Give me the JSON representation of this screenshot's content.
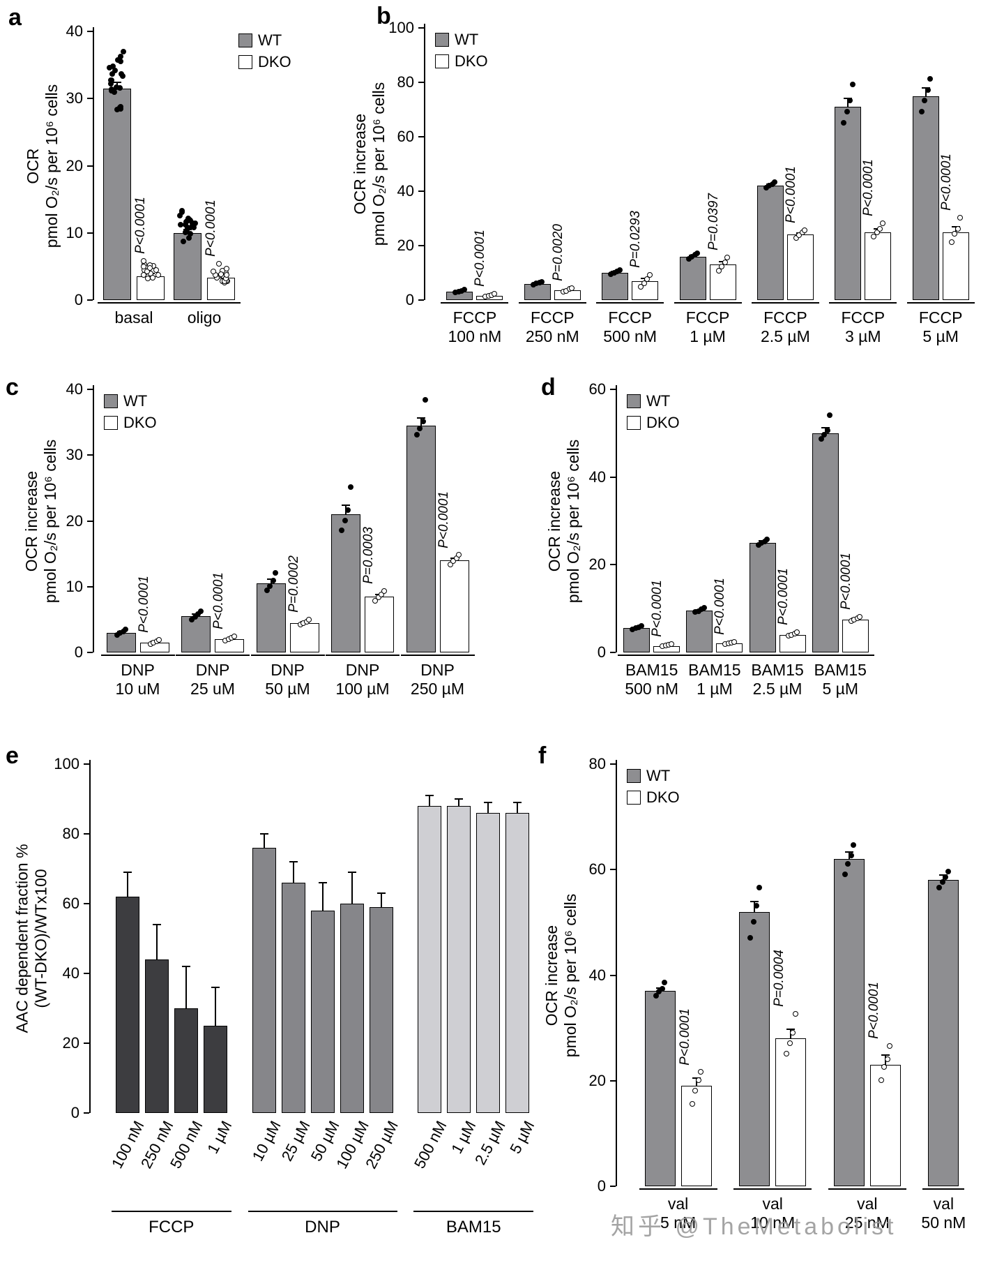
{
  "watermark": "知乎 @TheMetabolist",
  "legend": {
    "wt": "WT",
    "dko": "DKO"
  },
  "colors": {
    "wt_fill": "#8e8e91",
    "dko_fill": "#ffffff",
    "bar_border": "#000000"
  },
  "chart_data": [
    {
      "letter": "a",
      "type": "bar",
      "mode": "pair",
      "ylabel": [
        "OCR",
        "pmol O₂/s  per 10⁶ cells"
      ],
      "ymax": 40,
      "yticks": [
        0,
        10,
        20,
        30,
        40
      ],
      "groups": [
        {
          "lines": [
            "basal"
          ],
          "p": "P<0.0001",
          "wt": {
            "mean": 31.5,
            "err": 0.9,
            "n": 22,
            "range": [
              27,
              38
            ]
          },
          "dko": {
            "mean": 3.5,
            "err": 0.5,
            "n": 15,
            "range": [
              2,
              6.5
            ]
          }
        },
        {
          "lines": [
            "oligo"
          ],
          "p": "P<0.0001",
          "wt": {
            "mean": 10,
            "err": 0.5,
            "n": 22,
            "range": [
              8,
              14
            ]
          },
          "dko": {
            "mean": 3.3,
            "err": 0.5,
            "n": 15,
            "range": [
              2,
              5.5
            ]
          }
        }
      ]
    },
    {
      "letter": "b",
      "type": "bar",
      "mode": "pair",
      "ylabel": [
        "OCR increase",
        "pmol O₂/s  per 10⁶ cells"
      ],
      "ymax": 100,
      "yticks": [
        0,
        20,
        40,
        60,
        80,
        100
      ],
      "groups": [
        {
          "lines": [
            "FCCP",
            "100 nM"
          ],
          "p": "P<0.0001",
          "wt": {
            "mean": 3,
            "err": 0.3,
            "points": [
              2.5,
              2.8,
              3.2,
              3.5
            ]
          },
          "dko": {
            "mean": 1.5,
            "err": 0.3,
            "points": [
              1,
              1.3,
              1.6,
              2
            ]
          }
        },
        {
          "lines": [
            "FCCP",
            "250 nM"
          ],
          "p": "P=0.0020",
          "wt": {
            "mean": 6,
            "err": 0.3,
            "points": [
              5.5,
              5.8,
              6.2,
              6.5
            ]
          },
          "dko": {
            "mean": 3.5,
            "err": 0.4,
            "points": [
              2.8,
              3.2,
              3.8,
              4.2
            ]
          }
        },
        {
          "lines": [
            "FCCP",
            "500 nM"
          ],
          "p": "P=0.0293",
          "wt": {
            "mean": 10,
            "err": 0.4,
            "points": [
              9.2,
              9.8,
              10.3,
              10.8
            ]
          },
          "dko": {
            "mean": 7,
            "err": 1.0,
            "points": [
              4.5,
              6,
              7.5,
              9
            ]
          }
        },
        {
          "lines": [
            "FCCP",
            "1 µM"
          ],
          "p": "P=0.0397",
          "wt": {
            "mean": 16,
            "err": 0.5,
            "points": [
              15,
              15.7,
              16.4,
              17
            ]
          },
          "dko": {
            "mean": 13,
            "err": 1.2,
            "points": [
              10.5,
              12,
              13.5,
              15.5
            ]
          }
        },
        {
          "lines": [
            "FCCP",
            "2.5 µM"
          ],
          "p": "P<0.0001",
          "wt": {
            "mean": 42,
            "err": 0.5,
            "points": [
              41,
              41.7,
              42.3,
              43
            ]
          },
          "dko": {
            "mean": 24,
            "err": 0.7,
            "points": [
              22.5,
              23.5,
              24.5,
              25.5
            ]
          }
        },
        {
          "lines": [
            "FCCP",
            "3 µM"
          ],
          "p": "P<0.0001",
          "wt": {
            "mean": 71,
            "err": 3,
            "points": [
              65,
              69,
              73,
              79
            ]
          },
          "dko": {
            "mean": 25,
            "err": 1.2,
            "points": [
              23,
              24.5,
              26,
              28
            ]
          }
        },
        {
          "lines": [
            "FCCP",
            "5 µM"
          ],
          "p": "P<0.0001",
          "wt": {
            "mean": 75,
            "err": 3,
            "points": [
              69,
              73,
              77,
              81
            ]
          },
          "dko": {
            "mean": 25,
            "err": 2,
            "points": [
              21,
              24,
              26,
              30
            ]
          }
        }
      ]
    },
    {
      "letter": "c",
      "type": "bar",
      "mode": "pair",
      "ylabel": [
        "OCR increase",
        "pmol O₂/s  per 10⁶ cells"
      ],
      "ymax": 40,
      "yticks": [
        0,
        10,
        20,
        30,
        40
      ],
      "groups": [
        {
          "lines": [
            "DNP",
            "10 uM"
          ],
          "p": "P<0.0001",
          "wt": {
            "mean": 3,
            "err": 0.2,
            "points": [
              2.6,
              2.9,
              3.1,
              3.4
            ]
          },
          "dko": {
            "mean": 1.5,
            "err": 0.15,
            "points": [
              1.2,
              1.4,
              1.6,
              1.8
            ]
          }
        },
        {
          "lines": [
            "DNP",
            "25 uM"
          ],
          "p": "P<0.0001",
          "wt": {
            "mean": 5.5,
            "err": 0.3,
            "points": [
              4.9,
              5.3,
              5.7,
              6.2
            ]
          },
          "dko": {
            "mean": 2,
            "err": 0.15,
            "points": [
              1.7,
              1.9,
              2.1,
              2.3
            ]
          }
        },
        {
          "lines": [
            "DNP",
            "50 µM"
          ],
          "p": "P=0.0002",
          "wt": {
            "mean": 10.5,
            "err": 0.6,
            "points": [
              9.3,
              10,
              10.8,
              12
            ]
          },
          "dko": {
            "mean": 4.5,
            "err": 0.2,
            "points": [
              4.1,
              4.4,
              4.6,
              4.9
            ]
          }
        },
        {
          "lines": [
            "DNP",
            "100 µM"
          ],
          "p": "P=0.0003",
          "wt": {
            "mean": 21,
            "err": 1.4,
            "points": [
              18.5,
              20,
              21.5,
              25
            ]
          },
          "dko": {
            "mean": 8.5,
            "err": 0.3,
            "points": [
              7.8,
              8.3,
              8.7,
              9.2
            ]
          }
        },
        {
          "lines": [
            "DNP",
            "250 µM"
          ],
          "p": "P<0.0001",
          "wt": {
            "mean": 34.5,
            "err": 1.2,
            "points": [
              33,
              34,
              35,
              38.3
            ]
          },
          "dko": {
            "mean": 14,
            "err": 0.3,
            "points": [
              13.3,
              13.8,
              14.2,
              14.7
            ]
          }
        }
      ]
    },
    {
      "letter": "d",
      "type": "bar",
      "mode": "pair",
      "ylabel": [
        "OCR increase",
        "pmol O₂/s  per 10⁶ cells"
      ],
      "ymax": 60,
      "yticks": [
        0,
        20,
        40,
        60
      ],
      "groups": [
        {
          "lines": [
            "BAM15",
            "500 nM"
          ],
          "p": "P<0.0001",
          "wt": {
            "mean": 5.5,
            "err": 0.2,
            "points": [
              5.1,
              5.4,
              5.6,
              5.9
            ]
          },
          "dko": {
            "mean": 1.5,
            "err": 0.15,
            "points": [
              1.2,
              1.4,
              1.6,
              1.8
            ]
          }
        },
        {
          "lines": [
            "BAM15",
            "1 µM"
          ],
          "p": "P<0.0001",
          "wt": {
            "mean": 9.5,
            "err": 0.25,
            "points": [
              9,
              9.3,
              9.7,
              10
            ]
          },
          "dko": {
            "mean": 2,
            "err": 0.15,
            "points": [
              1.7,
              1.9,
              2.1,
              2.3
            ]
          }
        },
        {
          "lines": [
            "BAM15",
            "2.5 µM"
          ],
          "p": "P<0.0001",
          "wt": {
            "mean": 25,
            "err": 0.4,
            "points": [
              24.3,
              24.8,
              25.2,
              25.7
            ]
          },
          "dko": {
            "mean": 4,
            "err": 0.2,
            "points": [
              3.6,
              3.9,
              4.1,
              4.4
            ]
          }
        },
        {
          "lines": [
            "BAM15",
            "5 µM"
          ],
          "p": "P<0.0001",
          "wt": {
            "mean": 50,
            "err": 1.2,
            "points": [
              48.5,
              49.5,
              50.5,
              54
            ]
          },
          "dko": {
            "mean": 7.5,
            "err": 0.25,
            "points": [
              7,
              7.3,
              7.7,
              8
            ]
          }
        }
      ]
    },
    {
      "letter": "e",
      "type": "bar",
      "mode": "single",
      "ylabel": [
        "AAC dependent fraction %",
        "(WT-DKO)/WTx100"
      ],
      "ymax": 100,
      "yticks": [
        0,
        20,
        40,
        60,
        80,
        100
      ],
      "groups": [
        {
          "name": "FCCP",
          "color": "#3d3d40",
          "bars": [
            {
              "label": "100 nM",
              "value": 62,
              "err": 7
            },
            {
              "label": "250 nM",
              "value": 44,
              "err": 10
            },
            {
              "label": "500 nM",
              "value": 30,
              "err": 12
            },
            {
              "label": "1 µM",
              "value": 25,
              "err": 11
            }
          ]
        },
        {
          "name": "DNP",
          "color": "#86868a",
          "bars": [
            {
              "label": "10 µM",
              "value": 76,
              "err": 4
            },
            {
              "label": "25 µM",
              "value": 66,
              "err": 6
            },
            {
              "label": "50 µM",
              "value": 58,
              "err": 8
            },
            {
              "label": "100 µM",
              "value": 60,
              "err": 9
            },
            {
              "label": "250 µM",
              "value": 59,
              "err": 4
            }
          ]
        },
        {
          "name": "BAM15",
          "color": "#cfcfd3",
          "bars": [
            {
              "label": "500 nM",
              "value": 88,
              "err": 3
            },
            {
              "label": "1 µM",
              "value": 88,
              "err": 2
            },
            {
              "label": "2.5 µM",
              "value": 86,
              "err": 3
            },
            {
              "label": "5 µM",
              "value": 86,
              "err": 3
            }
          ]
        }
      ]
    },
    {
      "letter": "f",
      "type": "bar",
      "mode": "pair",
      "ylabel": [
        "OCR increase",
        "pmol O₂/s  per 10⁶ cells"
      ],
      "ymax": 80,
      "yticks": [
        0,
        20,
        40,
        60,
        80
      ],
      "groups": [
        {
          "lines": [
            "val",
            "5 nM"
          ],
          "p": "P<0.0001",
          "wt": {
            "mean": 37,
            "err": 0.6,
            "points": [
              36,
              36.7,
              37.3,
              38.5
            ]
          },
          "dko": {
            "mean": 19,
            "err": 1.5,
            "points": [
              15.5,
              18,
              20,
              21.5
            ]
          }
        },
        {
          "lines": [
            "val",
            "10 nM"
          ],
          "p": "P=0.0004",
          "wt": {
            "mean": 52,
            "err": 2,
            "points": [
              47,
              50,
              53,
              56.5
            ]
          },
          "dko": {
            "mean": 28,
            "err": 1.8,
            "points": [
              25,
              27,
              29,
              32.5
            ]
          }
        },
        {
          "lines": [
            "val",
            "25 nM"
          ],
          "p": "P<0.0001",
          "wt": {
            "mean": 62,
            "err": 1.3,
            "points": [
              59,
              61,
              62.5,
              64.5
            ]
          },
          "dko": {
            "mean": 23,
            "err": 1.8,
            "points": [
              20,
              22.5,
              24,
              26.5
            ]
          }
        },
        {
          "lines": [
            "val",
            "50 nM"
          ],
          "p": "",
          "wt": {
            "mean": 58,
            "err": 1,
            "points": [
              56.5,
              57.5,
              58.5,
              59.5
            ]
          },
          "dko": null
        }
      ]
    }
  ]
}
